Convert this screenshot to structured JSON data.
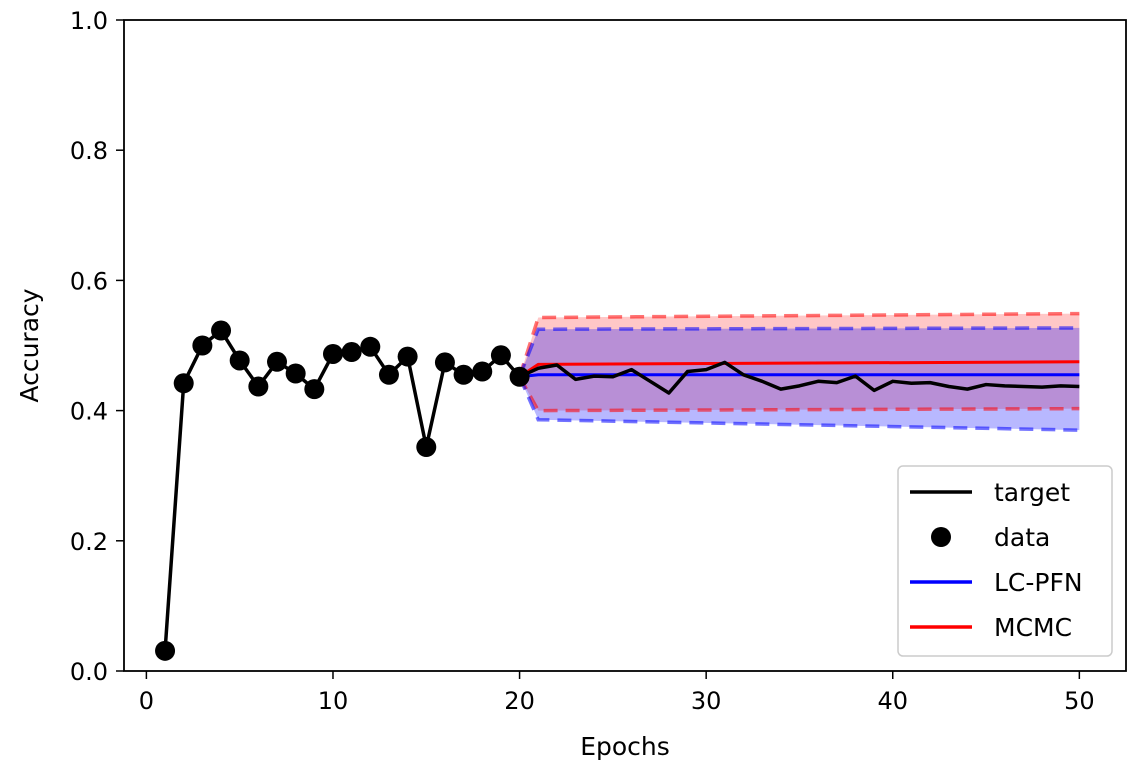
{
  "chart_data": {
    "type": "line",
    "xlabel": "Epochs",
    "ylabel": "Accuracy",
    "xlim": [
      -1.2,
      52.5
    ],
    "ylim": [
      0.0,
      1.0
    ],
    "x_ticks": [
      "0",
      "10",
      "20",
      "30",
      "40",
      "50"
    ],
    "y_ticks": [
      "0.0",
      "0.2",
      "0.4",
      "0.6",
      "0.8",
      "1.0"
    ],
    "grid": false,
    "legend_position": "bottom-right",
    "legend": [
      {
        "label": "target",
        "marker": "line",
        "color": "#000000"
      },
      {
        "label": "data",
        "marker": "dot",
        "color": "#000000"
      },
      {
        "label": "LC-PFN",
        "marker": "line",
        "color": "#0000ff"
      },
      {
        "label": "MCMC",
        "marker": "line",
        "color": "#ff0000"
      }
    ],
    "series": [
      {
        "name": "target",
        "color": "#000000",
        "x": [
          1,
          2,
          3,
          4,
          5,
          6,
          7,
          8,
          9,
          10,
          11,
          12,
          13,
          14,
          15,
          16,
          17,
          18,
          19,
          20,
          21,
          22,
          23,
          24,
          25,
          26,
          27,
          28,
          29,
          30,
          31,
          32,
          33,
          34,
          35,
          36,
          37,
          38,
          39,
          40,
          41,
          42,
          43,
          44,
          45,
          46,
          47,
          48,
          49,
          50
        ],
        "y": [
          0.031,
          0.442,
          0.5,
          0.523,
          0.477,
          0.437,
          0.475,
          0.457,
          0.433,
          0.487,
          0.49,
          0.498,
          0.455,
          0.483,
          0.344,
          0.474,
          0.455,
          0.46,
          0.485,
          0.452,
          0.465,
          0.47,
          0.448,
          0.453,
          0.452,
          0.463,
          0.445,
          0.427,
          0.46,
          0.463,
          0.474,
          0.455,
          0.445,
          0.433,
          0.438,
          0.445,
          0.443,
          0.453,
          0.431,
          0.445,
          0.442,
          0.443,
          0.437,
          0.433,
          0.44,
          0.438,
          0.437,
          0.436,
          0.438,
          0.437
        ]
      },
      {
        "name": "data",
        "color": "#000000",
        "x": [
          1,
          2,
          3,
          4,
          5,
          6,
          7,
          8,
          9,
          10,
          11,
          12,
          13,
          14,
          15,
          16,
          17,
          18,
          19,
          20
        ],
        "y": [
          0.031,
          0.442,
          0.5,
          0.523,
          0.477,
          0.437,
          0.475,
          0.457,
          0.433,
          0.487,
          0.49,
          0.498,
          0.455,
          0.483,
          0.344,
          0.474,
          0.455,
          0.46,
          0.485,
          0.452
        ]
      },
      {
        "name": "LC-PFN",
        "color": "#0000ff",
        "x": [
          20,
          21,
          50
        ],
        "y": [
          0.452,
          0.455,
          0.455
        ],
        "band_upper": [
          0.452,
          0.525,
          0.527
        ],
        "band_lower": [
          0.452,
          0.386,
          0.37
        ]
      },
      {
        "name": "MCMC",
        "color": "#ff0000",
        "x": [
          20,
          21,
          50
        ],
        "y": [
          0.452,
          0.471,
          0.475
        ],
        "band_upper": [
          0.452,
          0.543,
          0.549
        ],
        "band_lower": [
          0.452,
          0.4,
          0.403
        ]
      }
    ]
  }
}
